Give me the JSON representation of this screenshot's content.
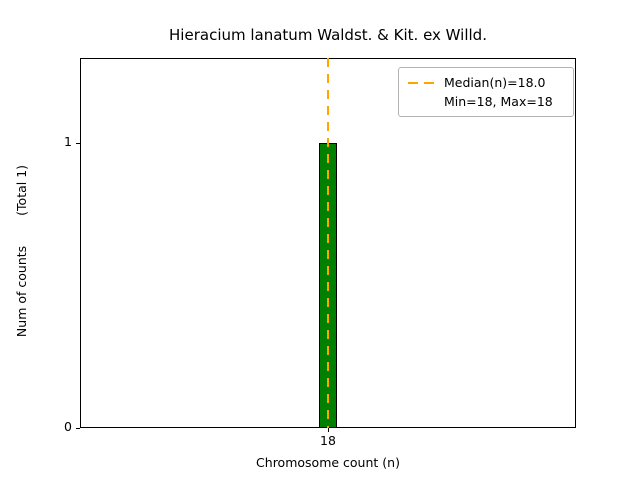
{
  "chart_data": {
    "type": "bar",
    "title": "Hieracium lanatum Waldst. & Kit. ex Willd.",
    "xlabel": "Chromosome count (n)",
    "ylabel": "Num of counts",
    "ylabel_annotation": "(Total 1)",
    "categories": [
      "18"
    ],
    "values": [
      1
    ],
    "total_counts": 1,
    "ylim": [
      0,
      1.3
    ],
    "yticks": [
      0,
      1
    ],
    "ytick_labels": [
      "0",
      "1"
    ],
    "xtick_labels": [
      "18"
    ],
    "median_n": 18.0,
    "min_n": 18,
    "max_n": 18,
    "bar_color": "#008000",
    "bar_edge_color": "#000000",
    "median_line_color": "#FFA500",
    "legend": {
      "position": "upper right",
      "entries": [
        "Median(n)=18.0",
        "Min=18, Max=18"
      ]
    },
    "grid": false
  }
}
